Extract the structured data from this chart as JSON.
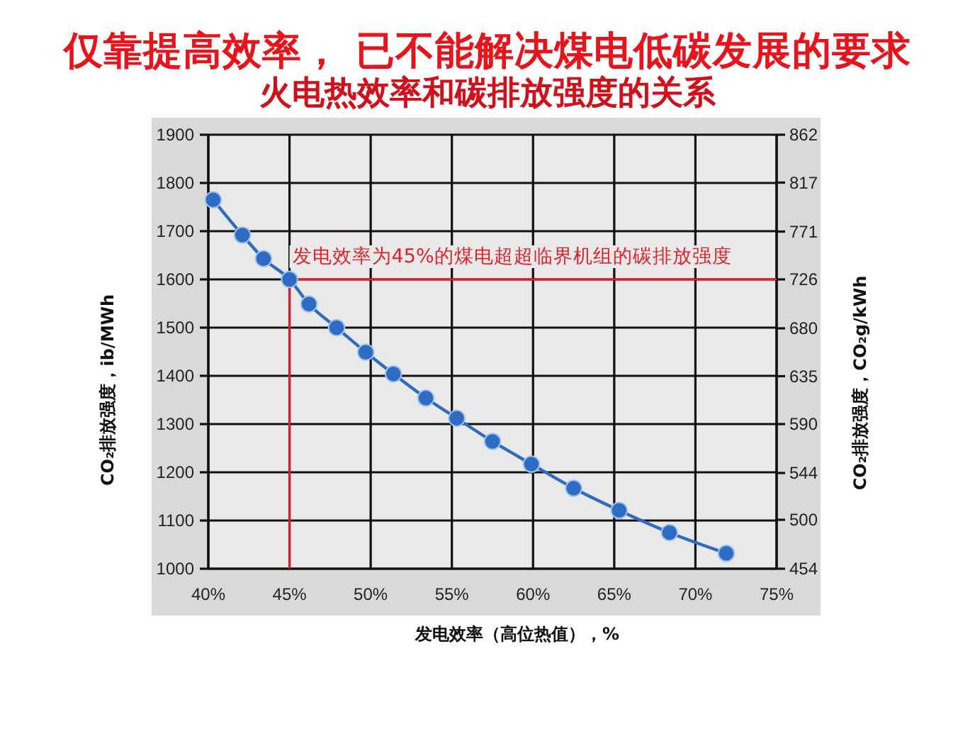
{
  "chart_data": {
    "type": "line",
    "title": "仅靠提高效率， 已不能解决煤电低碳发展的要求",
    "subtitle": "火电热效率和碳排放强度的关系",
    "xlabel": "发电效率（高位热值），%",
    "ylabel": "CO₂排放强度，ib/MWh",
    "y2label": "CO₂排放强度，CO₂g/kWh",
    "x": [
      40.3,
      42.1,
      43.4,
      45,
      46.2,
      47.9,
      49.7,
      51.4,
      53.4,
      55.3,
      57.5,
      59.9,
      62.5,
      65.3,
      68.4,
      71.9
    ],
    "series": [
      {
        "color": "#2f6bc2",
        "values": [
          1765,
          1692,
          1643,
          1600,
          1549,
          1500,
          1449,
          1404,
          1354,
          1312,
          1264,
          1217,
          1167,
          1121,
          1075,
          1032
        ]
      }
    ],
    "xlim": [
      40,
      75
    ],
    "xticks": [
      {
        "value": 40,
        "label": "40%"
      },
      {
        "value": 45,
        "label": "45%"
      },
      {
        "value": 50,
        "label": "50%"
      },
      {
        "value": 55,
        "label": "55%"
      },
      {
        "value": 60,
        "label": "60%"
      },
      {
        "value": 65,
        "label": "65%"
      },
      {
        "value": 70,
        "label": "70%"
      },
      {
        "value": 75,
        "label": "75%"
      }
    ],
    "ylim": [
      1000,
      1900
    ],
    "yticks": [
      1000,
      1100,
      1200,
      1300,
      1400,
      1500,
      1600,
      1700,
      1800,
      1900
    ],
    "y2lim": [
      454,
      862
    ],
    "y2ticks": [
      454,
      500,
      544,
      590,
      635,
      680,
      726,
      771,
      817,
      862
    ],
    "grid": true,
    "marker": "circle",
    "line_style": "solid",
    "ref_lines": [
      {
        "axis": "x",
        "value": 45,
        "color": "#d0202a"
      },
      {
        "axis": "y",
        "value": 1600,
        "label": "发电效率为45%的煤电超超临界机组的碳排放强度",
        "color": "#e0202a"
      }
    ]
  }
}
